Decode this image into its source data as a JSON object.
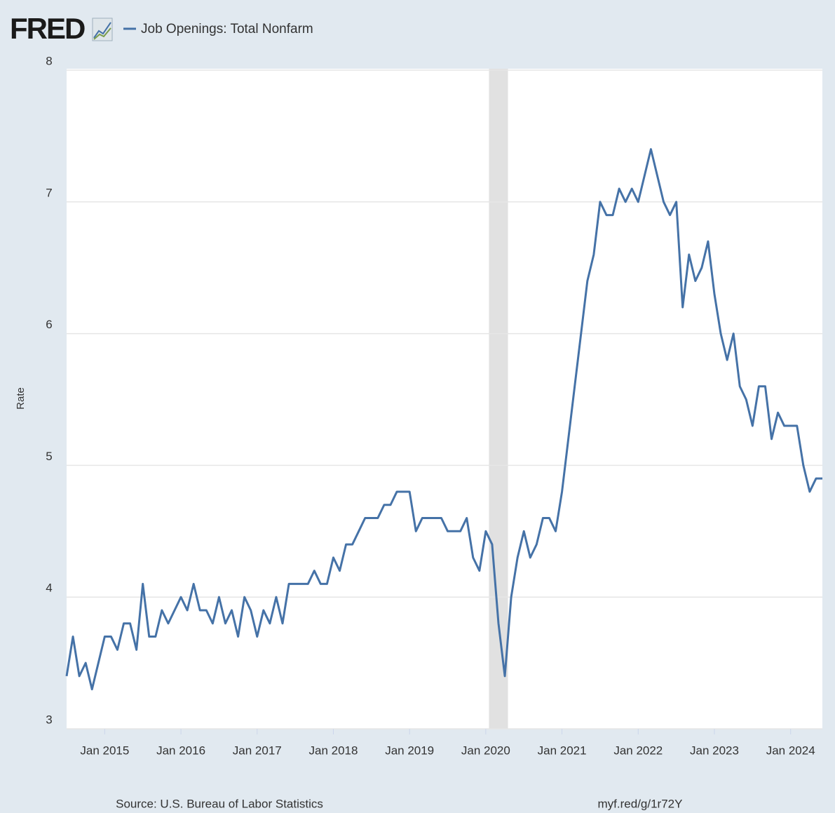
{
  "logo": "FRED",
  "chart_data": {
    "type": "line",
    "ylabel": "Rate",
    "source": "Source: U.S. Bureau of Labor Statistics",
    "link": "myf.red/g/1r72Y",
    "x": [
      "2014-07",
      "2014-08",
      "2014-09",
      "2014-10",
      "2014-11",
      "2014-12",
      "2015-01",
      "2015-02",
      "2015-03",
      "2015-04",
      "2015-05",
      "2015-06",
      "2015-07",
      "2015-08",
      "2015-09",
      "2015-10",
      "2015-11",
      "2015-12",
      "2016-01",
      "2016-02",
      "2016-03",
      "2016-04",
      "2016-05",
      "2016-06",
      "2016-07",
      "2016-08",
      "2016-09",
      "2016-10",
      "2016-11",
      "2016-12",
      "2017-01",
      "2017-02",
      "2017-03",
      "2017-04",
      "2017-05",
      "2017-06",
      "2017-07",
      "2017-08",
      "2017-09",
      "2017-10",
      "2017-11",
      "2017-12",
      "2018-01",
      "2018-02",
      "2018-03",
      "2018-04",
      "2018-05",
      "2018-06",
      "2018-07",
      "2018-08",
      "2018-09",
      "2018-10",
      "2018-11",
      "2018-12",
      "2019-01",
      "2019-02",
      "2019-03",
      "2019-04",
      "2019-05",
      "2019-06",
      "2019-07",
      "2019-08",
      "2019-09",
      "2019-10",
      "2019-11",
      "2019-12",
      "2020-01",
      "2020-02",
      "2020-03",
      "2020-04",
      "2020-05",
      "2020-06",
      "2020-07",
      "2020-08",
      "2020-09",
      "2020-10",
      "2020-11",
      "2020-12",
      "2021-01",
      "2021-02",
      "2021-03",
      "2021-04",
      "2021-05",
      "2021-06",
      "2021-07",
      "2021-08",
      "2021-09",
      "2021-10",
      "2021-11",
      "2021-12",
      "2022-01",
      "2022-02",
      "2022-03",
      "2022-04",
      "2022-05",
      "2022-06",
      "2022-07",
      "2022-08",
      "2022-09",
      "2022-10",
      "2022-11",
      "2022-12",
      "2023-01",
      "2023-02",
      "2023-03",
      "2023-04",
      "2023-05",
      "2023-06",
      "2023-07",
      "2023-08",
      "2023-09",
      "2023-10",
      "2023-11",
      "2023-12",
      "2024-01",
      "2024-02",
      "2024-03",
      "2024-04",
      "2024-05",
      "2024-06"
    ],
    "series": [
      {
        "name": "Job Openings: Total Nonfarm",
        "color": "#4572a7",
        "values": [
          3.4,
          3.7,
          3.4,
          3.5,
          3.3,
          3.5,
          3.7,
          3.7,
          3.6,
          3.8,
          3.8,
          3.6,
          4.1,
          3.7,
          3.7,
          3.9,
          3.8,
          3.9,
          4.0,
          3.9,
          4.1,
          3.9,
          3.9,
          3.8,
          4.0,
          3.8,
          3.9,
          3.7,
          4.0,
          3.9,
          3.7,
          3.9,
          3.8,
          4.0,
          3.8,
          4.1,
          4.1,
          4.1,
          4.1,
          4.2,
          4.1,
          4.1,
          4.3,
          4.2,
          4.4,
          4.4,
          4.5,
          4.6,
          4.6,
          4.6,
          4.7,
          4.7,
          4.8,
          4.8,
          4.8,
          4.5,
          4.6,
          4.6,
          4.6,
          4.6,
          4.5,
          4.5,
          4.5,
          4.6,
          4.3,
          4.2,
          4.5,
          4.4,
          3.8,
          3.4,
          4.0,
          4.3,
          4.5,
          4.3,
          4.4,
          4.6,
          4.6,
          4.5,
          4.8,
          5.2,
          5.6,
          6.0,
          6.4,
          6.6,
          7.0,
          6.9,
          6.9,
          7.1,
          7.0,
          7.1,
          7.0,
          7.2,
          7.4,
          7.2,
          7.0,
          6.9,
          7.0,
          6.2,
          6.6,
          6.4,
          6.5,
          6.7,
          6.3,
          6.0,
          5.8,
          6.0,
          5.6,
          5.5,
          5.3,
          5.6,
          5.6,
          5.2,
          5.4,
          5.3,
          5.3,
          5.3,
          5.0,
          4.8,
          4.9,
          4.9
        ]
      }
    ],
    "xlim": [
      "2014-07",
      "2024-06"
    ],
    "xticks": [
      {
        "value": "2015-01",
        "label": "Jan 2015"
      },
      {
        "value": "2016-01",
        "label": "Jan 2016"
      },
      {
        "value": "2017-01",
        "label": "Jan 2017"
      },
      {
        "value": "2018-01",
        "label": "Jan 2018"
      },
      {
        "value": "2019-01",
        "label": "Jan 2019"
      },
      {
        "value": "2020-01",
        "label": "Jan 2020"
      },
      {
        "value": "2021-01",
        "label": "Jan 2021"
      },
      {
        "value": "2022-01",
        "label": "Jan 2022"
      },
      {
        "value": "2023-01",
        "label": "Jan 2023"
      },
      {
        "value": "2024-01",
        "label": "Jan 2024"
      }
    ],
    "ylim": [
      3,
      8
    ],
    "yticks": [
      3,
      4,
      5,
      6,
      7,
      8
    ],
    "grid": true,
    "recessions": [
      {
        "start": "2020-02",
        "end": "2020-04"
      }
    ]
  }
}
